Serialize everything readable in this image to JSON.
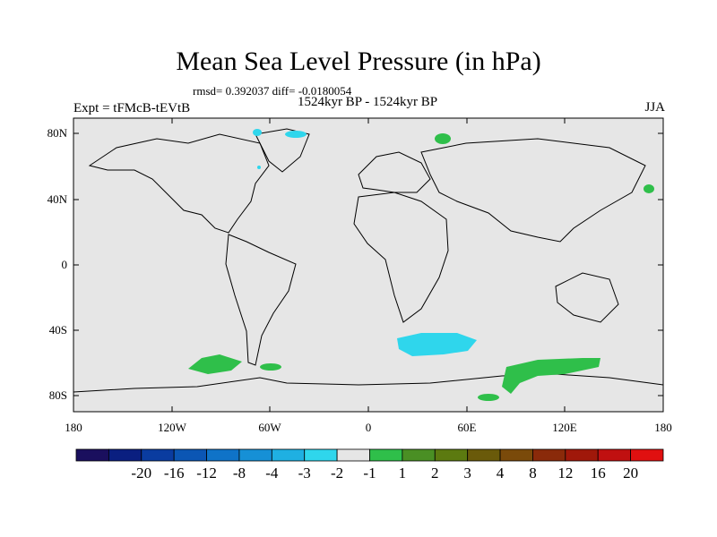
{
  "title": "Mean Sea Level Pressure (in hPa)",
  "stats": "rmsd= 0.392037 diff= -0.0180054",
  "subtitle": "1524kyr BP - 1524kyr BP",
  "left_label": "Expt = tFMcB-tEVtB",
  "right_label": "JJA",
  "lat_ticks": [
    "80N",
    "40N",
    "0",
    "40S",
    "80S"
  ],
  "lon_ticks": [
    "180",
    "120W",
    "60W",
    "0",
    "60E",
    "120E",
    "180"
  ],
  "colorbar": {
    "colors": [
      "#1a0f5e",
      "#0a1f80",
      "#0a3ca0",
      "#0b56b4",
      "#0f73c8",
      "#1690d6",
      "#1fb0e2",
      "#2fd6ec",
      "#e6e6e6",
      "#2fbf4a",
      "#4a8f24",
      "#5c7a10",
      "#6a5a0a",
      "#7a4a0a",
      "#8a2a0a",
      "#a0180a",
      "#c01010",
      "#e01010"
    ],
    "labels": [
      "-20",
      "-16",
      "-12",
      "-8",
      "-4",
      "-3",
      "-2",
      "-1",
      "1",
      "2",
      "3",
      "4",
      "8",
      "12",
      "16",
      "20"
    ]
  },
  "colors": {
    "ocean_bg": "#e6e6e6",
    "positive_1_2": "#2fbf4a",
    "negative_minus2_minus1": "#2fd6ec",
    "negative_minus3_minus2": "#1fb0e2"
  }
}
